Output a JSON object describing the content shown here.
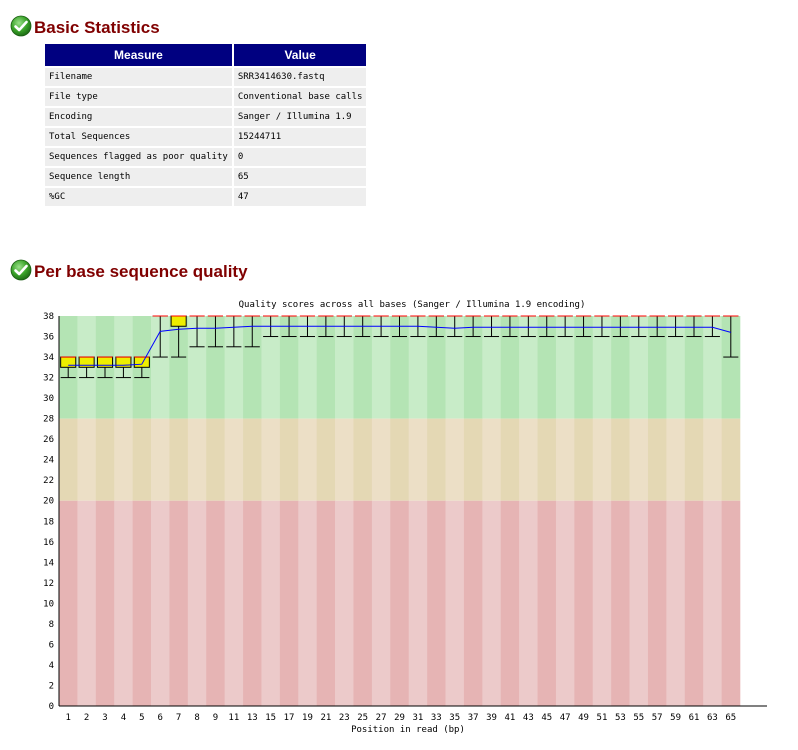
{
  "basic_statistics": {
    "title": "Basic Statistics",
    "status_icon": "pass-check-icon",
    "headers": [
      "Measure",
      "Value"
    ],
    "rows": [
      [
        "Filename",
        "SRR3414630.fastq"
      ],
      [
        "File type",
        "Conventional base calls"
      ],
      [
        "Encoding",
        "Sanger / Illumina 1.9"
      ],
      [
        "Total Sequences",
        "15244711"
      ],
      [
        "Sequences flagged as poor quality",
        "0"
      ],
      [
        "Sequence length",
        "65"
      ],
      [
        "%GC",
        "47"
      ]
    ]
  },
  "per_base_quality": {
    "title": "Per base sequence quality",
    "status_icon": "pass-check-icon"
  },
  "colors": {
    "heading": "#800000",
    "table_header_bg": "#000080",
    "table_header_fg": "#ffffff",
    "table_cell_bg": "#eeeeee",
    "pass_icon": "#3aa329",
    "zone_good": [
      "#b4e4b4",
      "#c8ecc8"
    ],
    "zone_warn": [
      "#e4d8b4",
      "#ecdfc6"
    ],
    "zone_bad": [
      "#e6b4b4",
      "#eccaca"
    ],
    "box_fill": "#eeee00",
    "whisker": "#000000",
    "median": "#ff0000",
    "mean_line": "#0000ff"
  },
  "chart_data": {
    "type": "box",
    "title": "Quality scores across all bases (Sanger / Illumina 1.9 encoding)",
    "xlabel": "Position in read (bp)",
    "ylabel": "",
    "ylim": [
      0,
      38
    ],
    "yticks": [
      0,
      2,
      4,
      6,
      8,
      10,
      12,
      14,
      16,
      18,
      20,
      22,
      24,
      26,
      28,
      30,
      32,
      34,
      36,
      38
    ],
    "zones": [
      {
        "name": "good",
        "from": 28,
        "to": 38
      },
      {
        "name": "acceptable",
        "from": 20,
        "to": 28
      },
      {
        "name": "poor",
        "from": 0,
        "to": 20
      }
    ],
    "x_labels": [
      "1",
      "2",
      "3",
      "4",
      "5",
      "6",
      "7",
      "8",
      "9",
      "11",
      "13",
      "15",
      "17",
      "19",
      "21",
      "23",
      "25",
      "27",
      "29",
      "31",
      "33",
      "35",
      "37",
      "39",
      "41",
      "43",
      "45",
      "47",
      "49",
      "51",
      "53",
      "55",
      "57",
      "59",
      "61",
      "63",
      "65"
    ],
    "positions": [
      {
        "label": "1",
        "lw": 32,
        "q1": 33,
        "median": 34,
        "q3": 34,
        "uw": 34,
        "mean": 33.2
      },
      {
        "label": "2",
        "lw": 32,
        "q1": 33,
        "median": 34,
        "q3": 34,
        "uw": 34,
        "mean": 33.2
      },
      {
        "label": "3",
        "lw": 32,
        "q1": 33,
        "median": 34,
        "q3": 34,
        "uw": 34,
        "mean": 33.2
      },
      {
        "label": "4",
        "lw": 32,
        "q1": 33,
        "median": 34,
        "q3": 34,
        "uw": 34,
        "mean": 33.2
      },
      {
        "label": "5",
        "lw": 32,
        "q1": 33,
        "median": 34,
        "q3": 34,
        "uw": 34,
        "mean": 33.3
      },
      {
        "label": "6",
        "lw": 34,
        "q1": 38,
        "median": 38,
        "q3": 38,
        "uw": 38,
        "mean": 36.5
      },
      {
        "label": "7",
        "lw": 34,
        "q1": 37,
        "median": 38,
        "q3": 38,
        "uw": 38,
        "mean": 36.7
      },
      {
        "label": "8",
        "lw": 35,
        "q1": 38,
        "median": 38,
        "q3": 38,
        "uw": 38,
        "mean": 36.8
      },
      {
        "label": "9",
        "lw": 35,
        "q1": 38,
        "median": 38,
        "q3": 38,
        "uw": 38,
        "mean": 36.8
      },
      {
        "label": "10-11",
        "lw": 35,
        "q1": 38,
        "median": 38,
        "q3": 38,
        "uw": 38,
        "mean": 36.9
      },
      {
        "label": "12-13",
        "lw": 35,
        "q1": 38,
        "median": 38,
        "q3": 38,
        "uw": 38,
        "mean": 37.0
      },
      {
        "label": "14-15",
        "lw": 36,
        "q1": 38,
        "median": 38,
        "q3": 38,
        "uw": 38,
        "mean": 37.0
      },
      {
        "label": "16-17",
        "lw": 36,
        "q1": 38,
        "median": 38,
        "q3": 38,
        "uw": 38,
        "mean": 37.0
      },
      {
        "label": "18-19",
        "lw": 36,
        "q1": 38,
        "median": 38,
        "q3": 38,
        "uw": 38,
        "mean": 37.0
      },
      {
        "label": "20-21",
        "lw": 36,
        "q1": 38,
        "median": 38,
        "q3": 38,
        "uw": 38,
        "mean": 37.0
      },
      {
        "label": "22-23",
        "lw": 36,
        "q1": 38,
        "median": 38,
        "q3": 38,
        "uw": 38,
        "mean": 37.0
      },
      {
        "label": "24-25",
        "lw": 36,
        "q1": 38,
        "median": 38,
        "q3": 38,
        "uw": 38,
        "mean": 37.0
      },
      {
        "label": "26-27",
        "lw": 36,
        "q1": 38,
        "median": 38,
        "q3": 38,
        "uw": 38,
        "mean": 37.0
      },
      {
        "label": "28-29",
        "lw": 36,
        "q1": 38,
        "median": 38,
        "q3": 38,
        "uw": 38,
        "mean": 37.0
      },
      {
        "label": "30-31",
        "lw": 36,
        "q1": 38,
        "median": 38,
        "q3": 38,
        "uw": 38,
        "mean": 37.0
      },
      {
        "label": "32-33",
        "lw": 36,
        "q1": 38,
        "median": 38,
        "q3": 38,
        "uw": 38,
        "mean": 36.9
      },
      {
        "label": "34-35",
        "lw": 36,
        "q1": 38,
        "median": 38,
        "q3": 38,
        "uw": 38,
        "mean": 36.8
      },
      {
        "label": "36-37",
        "lw": 36,
        "q1": 38,
        "median": 38,
        "q3": 38,
        "uw": 38,
        "mean": 36.9
      },
      {
        "label": "38-39",
        "lw": 36,
        "q1": 38,
        "median": 38,
        "q3": 38,
        "uw": 38,
        "mean": 36.9
      },
      {
        "label": "40-41",
        "lw": 36,
        "q1": 38,
        "median": 38,
        "q3": 38,
        "uw": 38,
        "mean": 36.9
      },
      {
        "label": "42-43",
        "lw": 36,
        "q1": 38,
        "median": 38,
        "q3": 38,
        "uw": 38,
        "mean": 36.9
      },
      {
        "label": "44-45",
        "lw": 36,
        "q1": 38,
        "median": 38,
        "q3": 38,
        "uw": 38,
        "mean": 36.9
      },
      {
        "label": "46-47",
        "lw": 36,
        "q1": 38,
        "median": 38,
        "q3": 38,
        "uw": 38,
        "mean": 36.9
      },
      {
        "label": "48-49",
        "lw": 36,
        "q1": 38,
        "median": 38,
        "q3": 38,
        "uw": 38,
        "mean": 36.9
      },
      {
        "label": "50-51",
        "lw": 36,
        "q1": 38,
        "median": 38,
        "q3": 38,
        "uw": 38,
        "mean": 36.9
      },
      {
        "label": "52-53",
        "lw": 36,
        "q1": 38,
        "median": 38,
        "q3": 38,
        "uw": 38,
        "mean": 36.9
      },
      {
        "label": "54-55",
        "lw": 36,
        "q1": 38,
        "median": 38,
        "q3": 38,
        "uw": 38,
        "mean": 36.9
      },
      {
        "label": "56-57",
        "lw": 36,
        "q1": 38,
        "median": 38,
        "q3": 38,
        "uw": 38,
        "mean": 36.9
      },
      {
        "label": "58-59",
        "lw": 36,
        "q1": 38,
        "median": 38,
        "q3": 38,
        "uw": 38,
        "mean": 36.9
      },
      {
        "label": "60-61",
        "lw": 36,
        "q1": 38,
        "median": 38,
        "q3": 38,
        "uw": 38,
        "mean": 36.9
      },
      {
        "label": "62-63",
        "lw": 36,
        "q1": 38,
        "median": 38,
        "q3": 38,
        "uw": 38,
        "mean": 36.9
      },
      {
        "label": "64-65",
        "lw": 34,
        "q1": 38,
        "median": 38,
        "q3": 38,
        "uw": 38,
        "mean": 36.4
      }
    ],
    "grid": false,
    "legend": "none"
  }
}
